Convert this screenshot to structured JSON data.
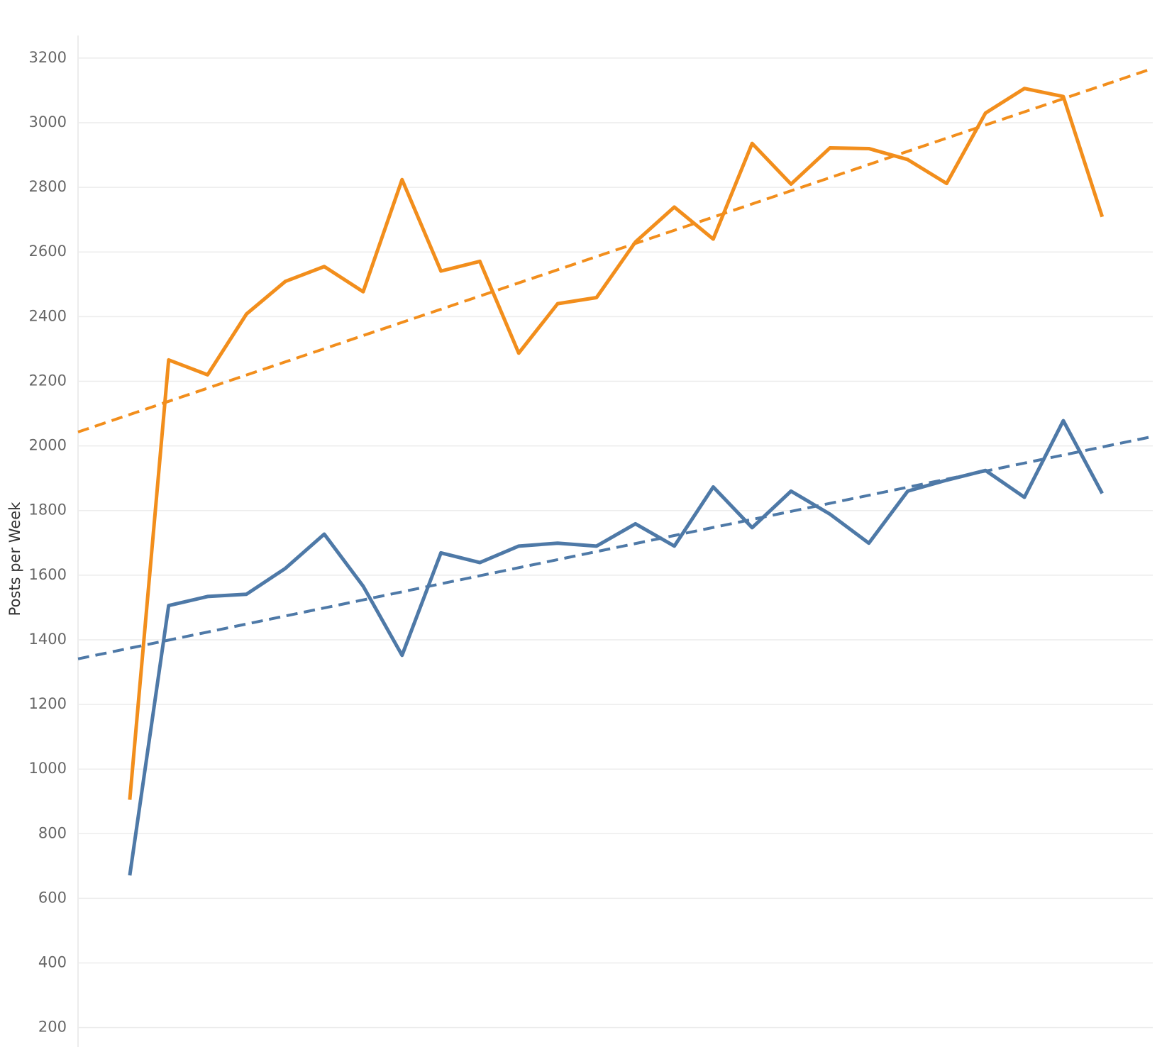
{
  "chart_data": {
    "type": "line",
    "y_label": "Posts per Week",
    "x": [
      1,
      2,
      3,
      4,
      5,
      6,
      7,
      8,
      9,
      10,
      11,
      12,
      13,
      14,
      15,
      16,
      17,
      18,
      19,
      20,
      21,
      22,
      23,
      24,
      25,
      26
    ],
    "xlim": [
      -0.33,
      27.3
    ],
    "ylim": [
      140,
      3270
    ],
    "yticks": [
      200,
      400,
      600,
      800,
      1000,
      1200,
      1400,
      1600,
      1800,
      2000,
      2200,
      2400,
      2600,
      2800,
      3000,
      3200
    ],
    "grid": true,
    "series": [
      {
        "color": "#f28e1c",
        "values": [
          905,
          2266,
          2220,
          2408,
          2509,
          2555,
          2477,
          2824,
          2541,
          2571,
          2287,
          2440,
          2459,
          2631,
          2739,
          2640,
          2936,
          2810,
          2922,
          2920,
          2886,
          2812,
          3030,
          3106,
          3081,
          2709
        ],
        "trendline": [
          2043,
          3168
        ]
      },
      {
        "color": "#4e79a7",
        "values": [
          671,
          1506,
          1534,
          1541,
          1621,
          1727,
          1566,
          1352,
          1669,
          1639,
          1690,
          1699,
          1690,
          1759,
          1690,
          1873,
          1747,
          1860,
          1789,
          1699,
          1860,
          1894,
          1924,
          1841,
          2078,
          1853
        ],
        "trendline": [
          1341,
          2029
        ]
      }
    ]
  }
}
